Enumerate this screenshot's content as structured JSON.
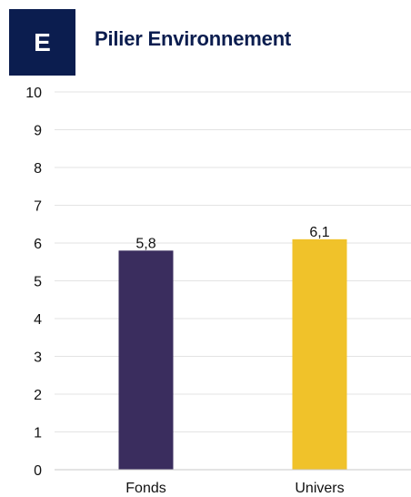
{
  "header": {
    "badge_letter": "E",
    "title": "Pilier Environnement"
  },
  "colors": {
    "badge_background": "#0b1d4f",
    "title": "#0b1d4f",
    "gridline": "#e3e3e3",
    "axis": "#c8c8c8"
  },
  "chart_data": {
    "type": "bar",
    "title": "Pilier Environnement",
    "xlabel": "",
    "ylabel": "",
    "categories": [
      "Fonds",
      "Univers"
    ],
    "values": [
      5.8,
      6.1
    ],
    "data_labels": [
      "5,8",
      "6,1"
    ],
    "bar_colors": [
      "#3a2d5e",
      "#f0c22a"
    ],
    "ylim": [
      0,
      10
    ],
    "yticks": [
      0,
      1,
      2,
      3,
      4,
      5,
      6,
      7,
      8,
      9,
      10
    ],
    "grid": true,
    "legend": "none"
  }
}
